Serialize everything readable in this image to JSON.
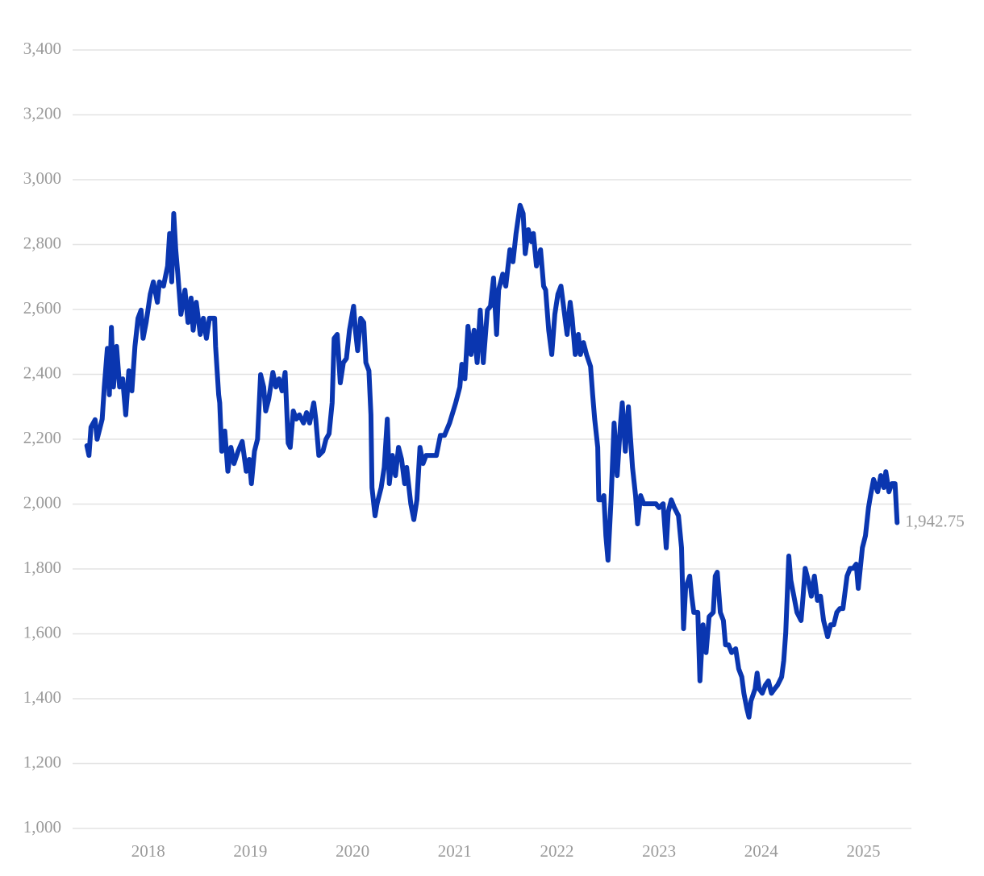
{
  "chart_data": {
    "type": "line",
    "color": "#0a36b0",
    "grid": true,
    "xlim": [
      2017.26,
      2025.47
    ],
    "xticks": [
      2018,
      2019,
      2020,
      2021,
      2022,
      2023,
      2024,
      2025
    ],
    "ylim": [
      1000,
      3400
    ],
    "yticks": [
      {
        "value": 1000,
        "label": "1,000"
      },
      {
        "value": 1200,
        "label": "1,200"
      },
      {
        "value": 1400,
        "label": "1,400"
      },
      {
        "value": 1600,
        "label": "1,600"
      },
      {
        "value": 1800,
        "label": "1,800"
      },
      {
        "value": 2000,
        "label": "2,000"
      },
      {
        "value": 2200,
        "label": "2,200"
      },
      {
        "value": 2400,
        "label": "2,400"
      },
      {
        "value": 2600,
        "label": "2,600"
      },
      {
        "value": 2800,
        "label": "2,800"
      },
      {
        "value": 3000,
        "label": "3,000"
      },
      {
        "value": 3200,
        "label": "3,200"
      },
      {
        "value": 3400,
        "label": "3,400"
      }
    ],
    "annotations": [
      {
        "text": "1,942.75"
      }
    ],
    "x": [
      2017.4,
      2017.42,
      2017.44,
      2017.48,
      2017.5,
      2017.55,
      2017.57,
      2017.6,
      2017.62,
      2017.64,
      2017.66,
      2017.69,
      2017.72,
      2017.75,
      2017.78,
      2017.81,
      2017.84,
      2017.87,
      2017.9,
      2017.93,
      2017.95,
      2017.98,
      2018.02,
      2018.05,
      2018.09,
      2018.11,
      2018.15,
      2018.19,
      2018.21,
      2018.23,
      2018.25,
      2018.27,
      2018.29,
      2018.32,
      2018.36,
      2018.39,
      2018.42,
      2018.44,
      2018.47,
      2018.51,
      2018.54,
      2018.57,
      2018.6,
      2018.65,
      2018.66,
      2018.69,
      2018.7,
      2018.72,
      2018.75,
      2018.78,
      2018.81,
      2018.84,
      2018.88,
      2018.92,
      2018.96,
      2018.99,
      2019.01,
      2019.04,
      2019.07,
      2019.1,
      2019.13,
      2019.15,
      2019.18,
      2019.22,
      2019.25,
      2019.28,
      2019.31,
      2019.34,
      2019.37,
      2019.39,
      2019.42,
      2019.45,
      2019.48,
      2019.52,
      2019.55,
      2019.58,
      2019.62,
      2019.64,
      2019.67,
      2019.71,
      2019.74,
      2019.77,
      2019.8,
      2019.82,
      2019.85,
      2019.88,
      2019.91,
      2019.94,
      2019.97,
      2020.01,
      2020.03,
      2020.05,
      2020.08,
      2020.11,
      2020.13,
      2020.16,
      2020.18,
      2020.19,
      2020.22,
      2020.24,
      2020.28,
      2020.31,
      2020.34,
      2020.36,
      2020.39,
      2020.42,
      2020.45,
      2020.48,
      2020.51,
      2020.53,
      2020.57,
      2020.6,
      2020.63,
      2020.66,
      2020.69,
      2020.72,
      2020.77,
      2020.82,
      2020.86,
      2020.9,
      2020.95,
      2021.01,
      2021.05,
      2021.07,
      2021.1,
      2021.13,
      2021.16,
      2021.19,
      2021.22,
      2021.25,
      2021.28,
      2021.32,
      2021.35,
      2021.38,
      2021.41,
      2021.43,
      2021.47,
      2021.5,
      2021.54,
      2021.57,
      2021.6,
      2021.64,
      2021.67,
      2021.69,
      2021.72,
      2021.75,
      2021.77,
      2021.8,
      2021.84,
      2021.87,
      2021.89,
      2021.92,
      2021.95,
      2021.98,
      2022.01,
      2022.04,
      2022.07,
      2022.1,
      2022.13,
      2022.15,
      2022.18,
      2022.21,
      2022.23,
      2022.26,
      2022.29,
      2022.33,
      2022.35,
      2022.37,
      2022.4,
      2022.41,
      2022.44,
      2022.46,
      2022.48,
      2022.5,
      2022.53,
      2022.56,
      2022.59,
      2022.62,
      2022.64,
      2022.67,
      2022.7,
      2022.74,
      2022.77,
      2022.79,
      2022.82,
      2022.85,
      2022.89,
      2022.93,
      2022.97,
      2023.0,
      2023.04,
      2023.07,
      2023.09,
      2023.12,
      2023.15,
      2023.19,
      2023.22,
      2023.24,
      2023.26,
      2023.3,
      2023.32,
      2023.34,
      2023.38,
      2023.4,
      2023.43,
      2023.46,
      2023.49,
      2023.53,
      2023.55,
      2023.57,
      2023.6,
      2023.63,
      2023.65,
      2023.68,
      2023.71,
      2023.75,
      2023.78,
      2023.81,
      2023.83,
      2023.86,
      2023.88,
      2023.9,
      2023.94,
      2023.96,
      2023.98,
      2024.01,
      2024.04,
      2024.07,
      2024.1,
      2024.13,
      2024.16,
      2024.2,
      2024.22,
      2024.24,
      2024.27,
      2024.29,
      2024.32,
      2024.35,
      2024.39,
      2024.41,
      2024.43,
      2024.46,
      2024.49,
      2024.52,
      2024.55,
      2024.58,
      2024.61,
      2024.65,
      2024.68,
      2024.71,
      2024.74,
      2024.77,
      2024.8,
      2024.84,
      2024.87,
      2024.9,
      2024.93,
      2024.95,
      2024.99,
      2025.02,
      2025.05,
      2025.07,
      2025.1,
      2025.14,
      2025.17,
      2025.2,
      2025.22,
      2025.25,
      2025.28,
      2025.31,
      2025.33
    ],
    "values": [
      2180,
      2150,
      2237,
      2260,
      2200,
      2262,
      2361,
      2480,
      2337,
      2545,
      2361,
      2486,
      2361,
      2386,
      2275,
      2411,
      2349,
      2486,
      2573,
      2598,
      2511,
      2560,
      2647,
      2685,
      2622,
      2685,
      2672,
      2734,
      2834,
      2685,
      2896,
      2784,
      2709,
      2585,
      2660,
      2560,
      2635,
      2536,
      2622,
      2523,
      2573,
      2511,
      2573,
      2573,
      2486,
      2337,
      2312,
      2163,
      2225,
      2101,
      2175,
      2125,
      2163,
      2193,
      2101,
      2138,
      2063,
      2163,
      2200,
      2399,
      2361,
      2287,
      2324,
      2406,
      2361,
      2386,
      2349,
      2406,
      2188,
      2175,
      2287,
      2262,
      2275,
      2250,
      2282,
      2250,
      2312,
      2262,
      2150,
      2163,
      2200,
      2217,
      2312,
      2511,
      2523,
      2374,
      2436,
      2449,
      2536,
      2610,
      2530,
      2473,
      2573,
      2560,
      2436,
      2411,
      2275,
      2051,
      1964,
      2001,
      2051,
      2113,
      2262,
      2063,
      2150,
      2088,
      2175,
      2138,
      2063,
      2113,
      2001,
      1952,
      2013,
      2175,
      2125,
      2150,
      2150,
      2150,
      2212,
      2212,
      2250,
      2312,
      2361,
      2431,
      2386,
      2548,
      2461,
      2536,
      2436,
      2598,
      2436,
      2598,
      2610,
      2697,
      2523,
      2660,
      2709,
      2672,
      2784,
      2747,
      2834,
      2921,
      2896,
      2772,
      2846,
      2809,
      2834,
      2734,
      2784,
      2672,
      2660,
      2536,
      2461,
      2585,
      2647,
      2672,
      2598,
      2523,
      2622,
      2573,
      2461,
      2523,
      2461,
      2498,
      2461,
      2424,
      2337,
      2262,
      2175,
      2013,
      2013,
      2026,
      1902,
      1827,
      2013,
      2250,
      2088,
      2237,
      2312,
      2163,
      2300,
      2113,
      2026,
      1939,
      2026,
      2001,
      2001,
      2001,
      2001,
      1989,
      2001,
      1865,
      1976,
      2013,
      1989,
      1964,
      1865,
      1616,
      1740,
      1778,
      1716,
      1666,
      1666,
      1455,
      1628,
      1542,
      1653,
      1666,
      1778,
      1790,
      1666,
      1641,
      1566,
      1566,
      1542,
      1554,
      1492,
      1467,
      1417,
      1368,
      1343,
      1393,
      1430,
      1479,
      1430,
      1417,
      1442,
      1455,
      1417,
      1430,
      1442,
      1467,
      1517,
      1604,
      1840,
      1765,
      1716,
      1666,
      1641,
      1716,
      1802,
      1765,
      1716,
      1778,
      1703,
      1716,
      1641,
      1591,
      1628,
      1628,
      1666,
      1678,
      1678,
      1778,
      1802,
      1802,
      1815,
      1740,
      1865,
      1902,
      1989,
      2026,
      2076,
      2038,
      2088,
      2051,
      2100,
      2038,
      2063,
      2063,
      1942.75
    ]
  }
}
